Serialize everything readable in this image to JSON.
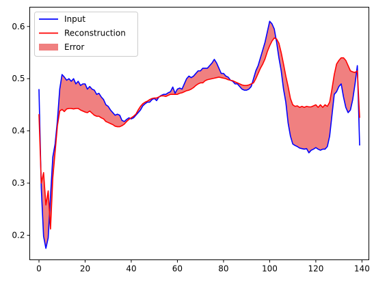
{
  "chart_data": {
    "type": "line",
    "xlim": [
      -4,
      143
    ],
    "ylim": [
      0.153,
      0.637
    ],
    "x_ticks": [
      0,
      20,
      40,
      60,
      80,
      100,
      120,
      140
    ],
    "y_ticks": [
      0.2,
      0.3,
      0.4,
      0.5,
      0.6
    ],
    "x_tick_labels": [
      "0",
      "20",
      "40",
      "60",
      "80",
      "100",
      "120",
      "140"
    ],
    "y_tick_labels": [
      "0.2",
      "0.3",
      "0.4",
      "0.5",
      "0.6"
    ],
    "grid": false,
    "legend_position": "top-left",
    "legend": [
      {
        "label": "Input",
        "kind": "line",
        "color": "#0000ff"
      },
      {
        "label": "Reconstruction",
        "kind": "line",
        "color": "#ff0000"
      },
      {
        "label": "Error",
        "kind": "fill",
        "color": "#f08080"
      }
    ],
    "series": [
      {
        "name": "Input",
        "color": "#0000ff",
        "x": [
          0,
          1,
          2,
          3,
          4,
          5,
          6,
          7,
          8,
          9,
          10,
          11,
          12,
          13,
          14,
          15,
          16,
          17,
          18,
          19,
          20,
          21,
          22,
          23,
          24,
          25,
          26,
          27,
          28,
          29,
          30,
          31,
          32,
          33,
          34,
          35,
          36,
          37,
          38,
          39,
          40,
          41,
          42,
          43,
          44,
          45,
          46,
          47,
          48,
          49,
          50,
          51,
          52,
          53,
          54,
          55,
          56,
          57,
          58,
          59,
          60,
          61,
          62,
          63,
          64,
          65,
          66,
          67,
          68,
          69,
          70,
          71,
          72,
          73,
          74,
          75,
          76,
          77,
          78,
          79,
          80,
          81,
          82,
          83,
          84,
          85,
          86,
          87,
          88,
          89,
          90,
          91,
          92,
          93,
          94,
          95,
          96,
          97,
          98,
          99,
          100,
          101,
          102,
          103,
          104,
          105,
          106,
          107,
          108,
          109,
          110,
          111,
          112,
          113,
          114,
          115,
          116,
          117,
          118,
          119,
          120,
          121,
          122,
          123,
          124,
          125,
          126,
          127,
          128,
          129,
          130,
          131,
          132,
          133,
          134,
          135,
          136,
          137,
          138,
          139
        ],
        "values": [
          0.48,
          0.29,
          0.198,
          0.175,
          0.195,
          0.275,
          0.35,
          0.375,
          0.42,
          0.48,
          0.508,
          0.503,
          0.497,
          0.5,
          0.495,
          0.5,
          0.49,
          0.495,
          0.487,
          0.49,
          0.49,
          0.48,
          0.485,
          0.48,
          0.478,
          0.47,
          0.472,
          0.465,
          0.46,
          0.45,
          0.447,
          0.44,
          0.435,
          0.43,
          0.432,
          0.43,
          0.42,
          0.418,
          0.422,
          0.425,
          0.423,
          0.425,
          0.43,
          0.435,
          0.44,
          0.448,
          0.452,
          0.455,
          0.455,
          0.46,
          0.462,
          0.458,
          0.465,
          0.468,
          0.47,
          0.47,
          0.473,
          0.475,
          0.484,
          0.472,
          0.48,
          0.482,
          0.48,
          0.49,
          0.5,
          0.505,
          0.502,
          0.505,
          0.51,
          0.515,
          0.515,
          0.52,
          0.52,
          0.52,
          0.525,
          0.53,
          0.537,
          0.53,
          0.52,
          0.51,
          0.51,
          0.505,
          0.503,
          0.497,
          0.495,
          0.49,
          0.49,
          0.485,
          0.48,
          0.478,
          0.478,
          0.48,
          0.485,
          0.5,
          0.515,
          0.525,
          0.54,
          0.555,
          0.57,
          0.59,
          0.61,
          0.605,
          0.595,
          0.57,
          0.54,
          0.515,
          0.48,
          0.455,
          0.415,
          0.39,
          0.375,
          0.372,
          0.37,
          0.367,
          0.366,
          0.365,
          0.366,
          0.358,
          0.363,
          0.365,
          0.368,
          0.365,
          0.363,
          0.365,
          0.365,
          0.37,
          0.39,
          0.43,
          0.47,
          0.475,
          0.485,
          0.49,
          0.465,
          0.445,
          0.435,
          0.44,
          0.46,
          0.49,
          0.525,
          0.372
        ]
      },
      {
        "name": "Reconstruction",
        "color": "#ff0000",
        "x": [
          0,
          1,
          2,
          3,
          4,
          5,
          6,
          7,
          8,
          9,
          10,
          11,
          12,
          13,
          14,
          15,
          16,
          17,
          18,
          19,
          20,
          21,
          22,
          23,
          24,
          25,
          26,
          27,
          28,
          29,
          30,
          31,
          32,
          33,
          34,
          35,
          36,
          37,
          38,
          39,
          40,
          41,
          42,
          43,
          44,
          45,
          46,
          47,
          48,
          49,
          50,
          51,
          52,
          53,
          54,
          55,
          56,
          57,
          58,
          59,
          60,
          61,
          62,
          63,
          64,
          65,
          66,
          67,
          68,
          69,
          70,
          71,
          72,
          73,
          74,
          75,
          76,
          77,
          78,
          79,
          80,
          81,
          82,
          83,
          84,
          85,
          86,
          87,
          88,
          89,
          90,
          91,
          92,
          93,
          94,
          95,
          96,
          97,
          98,
          99,
          100,
          101,
          102,
          103,
          104,
          105,
          106,
          107,
          108,
          109,
          110,
          111,
          112,
          113,
          114,
          115,
          116,
          117,
          118,
          119,
          120,
          121,
          122,
          123,
          124,
          125,
          126,
          127,
          128,
          129,
          130,
          131,
          132,
          133,
          134,
          135,
          136,
          137,
          138,
          139
        ],
        "values": [
          0.432,
          0.3,
          0.32,
          0.258,
          0.285,
          0.212,
          0.31,
          0.36,
          0.41,
          0.438,
          0.441,
          0.437,
          0.442,
          0.443,
          0.443,
          0.442,
          0.443,
          0.443,
          0.44,
          0.438,
          0.436,
          0.435,
          0.438,
          0.434,
          0.43,
          0.428,
          0.428,
          0.425,
          0.423,
          0.418,
          0.416,
          0.414,
          0.412,
          0.409,
          0.408,
          0.408,
          0.41,
          0.413,
          0.418,
          0.422,
          0.425,
          0.428,
          0.432,
          0.44,
          0.447,
          0.452,
          0.455,
          0.457,
          0.46,
          0.462,
          0.463,
          0.463,
          0.465,
          0.467,
          0.467,
          0.466,
          0.468,
          0.47,
          0.47,
          0.47,
          0.47,
          0.472,
          0.473,
          0.475,
          0.477,
          0.478,
          0.48,
          0.483,
          0.487,
          0.49,
          0.492,
          0.492,
          0.496,
          0.498,
          0.499,
          0.5,
          0.501,
          0.502,
          0.503,
          0.502,
          0.501,
          0.5,
          0.498,
          0.497,
          0.496,
          0.494,
          0.492,
          0.49,
          0.488,
          0.487,
          0.487,
          0.488,
          0.49,
          0.492,
          0.5,
          0.51,
          0.52,
          0.528,
          0.538,
          0.552,
          0.563,
          0.572,
          0.578,
          0.576,
          0.568,
          0.55,
          0.528,
          0.505,
          0.485,
          0.462,
          0.45,
          0.447,
          0.448,
          0.445,
          0.447,
          0.445,
          0.447,
          0.446,
          0.446,
          0.448,
          0.45,
          0.445,
          0.45,
          0.445,
          0.45,
          0.447,
          0.455,
          0.48,
          0.508,
          0.528,
          0.535,
          0.54,
          0.54,
          0.535,
          0.525,
          0.515,
          0.513,
          0.512,
          0.515,
          0.425
        ]
      }
    ]
  }
}
